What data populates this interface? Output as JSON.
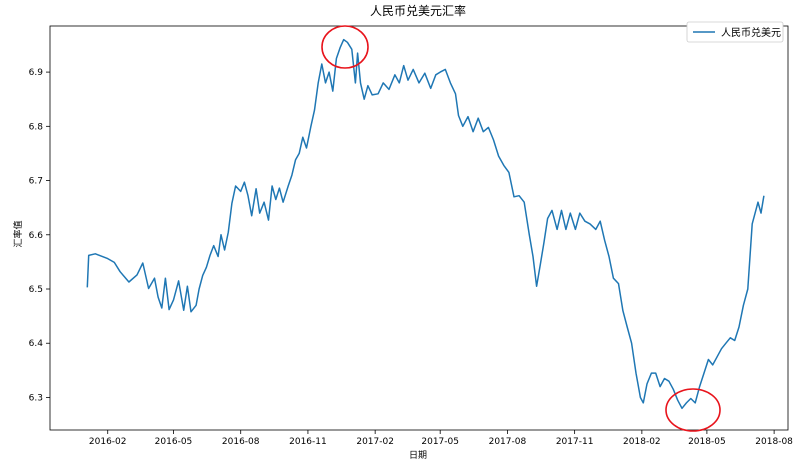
{
  "chart_data": {
    "type": "line",
    "title": "人民币兑美元汇率",
    "xlabel": "日期",
    "ylabel": "汇率值",
    "xlim": [
      "2015-11-14",
      "2018-08-20"
    ],
    "ylim": [
      6.24,
      6.985
    ],
    "x_ticks": [
      "2016-02",
      "2016-05",
      "2016-08",
      "2016-11",
      "2017-02",
      "2017-05",
      "2017-08",
      "2017-11",
      "2018-02",
      "2018-05",
      "2018-08"
    ],
    "y_ticks": [
      6.3,
      6.4,
      6.5,
      6.6,
      6.7,
      6.8,
      6.9
    ],
    "grid": false,
    "legend": "top-right",
    "colors": {
      "line": "#1f77b4",
      "annotation": "#e8141c"
    },
    "series": [
      {
        "name": "人民币兑美元",
        "points": [
          [
            "2016-01-04",
            6.503
          ],
          [
            "2016-01-06",
            6.562
          ],
          [
            "2016-01-15",
            6.565
          ],
          [
            "2016-02-01",
            6.556
          ],
          [
            "2016-02-10",
            6.549
          ],
          [
            "2016-02-18",
            6.532
          ],
          [
            "2016-03-01",
            6.513
          ],
          [
            "2016-03-12",
            6.526
          ],
          [
            "2016-03-20",
            6.548
          ],
          [
            "2016-03-28",
            6.501
          ],
          [
            "2016-04-05",
            6.52
          ],
          [
            "2016-04-10",
            6.485
          ],
          [
            "2016-04-15",
            6.465
          ],
          [
            "2016-04-20",
            6.52
          ],
          [
            "2016-04-25",
            6.462
          ],
          [
            "2016-05-01",
            6.48
          ],
          [
            "2016-05-08",
            6.515
          ],
          [
            "2016-05-15",
            6.461
          ],
          [
            "2016-05-20",
            6.505
          ],
          [
            "2016-05-25",
            6.458
          ],
          [
            "2016-06-01",
            6.47
          ],
          [
            "2016-06-05",
            6.5
          ],
          [
            "2016-06-10",
            6.525
          ],
          [
            "2016-06-15",
            6.54
          ],
          [
            "2016-06-20",
            6.562
          ],
          [
            "2016-06-25",
            6.58
          ],
          [
            "2016-07-01",
            6.56
          ],
          [
            "2016-07-05",
            6.6
          ],
          [
            "2016-07-10",
            6.572
          ],
          [
            "2016-07-15",
            6.605
          ],
          [
            "2016-07-20",
            6.658
          ],
          [
            "2016-07-25",
            6.69
          ],
          [
            "2016-08-01",
            6.68
          ],
          [
            "2016-08-06",
            6.697
          ],
          [
            "2016-08-11",
            6.672
          ],
          [
            "2016-08-16",
            6.635
          ],
          [
            "2016-08-22",
            6.685
          ],
          [
            "2016-08-27",
            6.64
          ],
          [
            "2016-09-02",
            6.66
          ],
          [
            "2016-09-08",
            6.627
          ],
          [
            "2016-09-13",
            6.69
          ],
          [
            "2016-09-18",
            6.665
          ],
          [
            "2016-09-23",
            6.686
          ],
          [
            "2016-09-28",
            6.66
          ],
          [
            "2016-10-05",
            6.69
          ],
          [
            "2016-10-10",
            6.71
          ],
          [
            "2016-10-15",
            6.738
          ],
          [
            "2016-10-20",
            6.75
          ],
          [
            "2016-10-25",
            6.78
          ],
          [
            "2016-10-30",
            6.76
          ],
          [
            "2016-11-05",
            6.8
          ],
          [
            "2016-11-10",
            6.83
          ],
          [
            "2016-11-15",
            6.88
          ],
          [
            "2016-11-20",
            6.915
          ],
          [
            "2016-11-25",
            6.88
          ],
          [
            "2016-11-30",
            6.9
          ],
          [
            "2016-12-05",
            6.865
          ],
          [
            "2016-12-10",
            6.925
          ],
          [
            "2016-12-15",
            6.945
          ],
          [
            "2016-12-20",
            6.96
          ],
          [
            "2016-12-25",
            6.955
          ],
          [
            "2016-12-31",
            6.942
          ],
          [
            "2017-01-05",
            6.88
          ],
          [
            "2017-01-08",
            6.935
          ],
          [
            "2017-01-12",
            6.88
          ],
          [
            "2017-01-17",
            6.85
          ],
          [
            "2017-01-22",
            6.875
          ],
          [
            "2017-01-28",
            6.858
          ],
          [
            "2017-02-05",
            6.86
          ],
          [
            "2017-02-12",
            6.88
          ],
          [
            "2017-02-20",
            6.868
          ],
          [
            "2017-02-28",
            6.895
          ],
          [
            "2017-03-06",
            6.88
          ],
          [
            "2017-03-12",
            6.912
          ],
          [
            "2017-03-18",
            6.885
          ],
          [
            "2017-03-25",
            6.905
          ],
          [
            "2017-04-02",
            6.88
          ],
          [
            "2017-04-10",
            6.898
          ],
          [
            "2017-04-18",
            6.87
          ],
          [
            "2017-04-25",
            6.895
          ],
          [
            "2017-05-01",
            6.9
          ],
          [
            "2017-05-08",
            6.905
          ],
          [
            "2017-05-15",
            6.88
          ],
          [
            "2017-05-22",
            6.86
          ],
          [
            "2017-05-26",
            6.82
          ],
          [
            "2017-06-01",
            6.8
          ],
          [
            "2017-06-08",
            6.818
          ],
          [
            "2017-06-15",
            6.79
          ],
          [
            "2017-06-22",
            6.815
          ],
          [
            "2017-06-29",
            6.79
          ],
          [
            "2017-07-06",
            6.798
          ],
          [
            "2017-07-13",
            6.775
          ],
          [
            "2017-07-20",
            6.745
          ],
          [
            "2017-07-27",
            6.728
          ],
          [
            "2017-08-03",
            6.715
          ],
          [
            "2017-08-10",
            6.67
          ],
          [
            "2017-08-17",
            6.672
          ],
          [
            "2017-08-24",
            6.66
          ],
          [
            "2017-08-31",
            6.6
          ],
          [
            "2017-09-05",
            6.56
          ],
          [
            "2017-09-10",
            6.505
          ],
          [
            "2017-09-15",
            6.545
          ],
          [
            "2017-09-20",
            6.585
          ],
          [
            "2017-09-25",
            6.63
          ],
          [
            "2017-10-01",
            6.645
          ],
          [
            "2017-10-08",
            6.61
          ],
          [
            "2017-10-14",
            6.645
          ],
          [
            "2017-10-20",
            6.61
          ],
          [
            "2017-10-26",
            6.64
          ],
          [
            "2017-11-02",
            6.61
          ],
          [
            "2017-11-08",
            6.64
          ],
          [
            "2017-11-15",
            6.625
          ],
          [
            "2017-11-22",
            6.62
          ],
          [
            "2017-11-30",
            6.61
          ],
          [
            "2017-12-06",
            6.625
          ],
          [
            "2017-12-12",
            6.59
          ],
          [
            "2017-12-18",
            6.56
          ],
          [
            "2017-12-24",
            6.52
          ],
          [
            "2017-12-31",
            6.51
          ],
          [
            "2018-01-06",
            6.46
          ],
          [
            "2018-01-12",
            6.43
          ],
          [
            "2018-01-18",
            6.4
          ],
          [
            "2018-01-24",
            6.345
          ],
          [
            "2018-01-30",
            6.3
          ],
          [
            "2018-02-03",
            6.29
          ],
          [
            "2018-02-08",
            6.325
          ],
          [
            "2018-02-14",
            6.345
          ],
          [
            "2018-02-20",
            6.345
          ],
          [
            "2018-02-26",
            6.32
          ],
          [
            "2018-03-04",
            6.335
          ],
          [
            "2018-03-10",
            6.33
          ],
          [
            "2018-03-16",
            6.315
          ],
          [
            "2018-03-22",
            6.295
          ],
          [
            "2018-03-28",
            6.28
          ],
          [
            "2018-04-03",
            6.29
          ],
          [
            "2018-04-09",
            6.298
          ],
          [
            "2018-04-15",
            6.29
          ],
          [
            "2018-04-21",
            6.32
          ],
          [
            "2018-04-27",
            6.345
          ],
          [
            "2018-05-03",
            6.37
          ],
          [
            "2018-05-09",
            6.36
          ],
          [
            "2018-05-15",
            6.375
          ],
          [
            "2018-05-21",
            6.39
          ],
          [
            "2018-05-27",
            6.4
          ],
          [
            "2018-06-02",
            6.41
          ],
          [
            "2018-06-08",
            6.405
          ],
          [
            "2018-06-14",
            6.43
          ],
          [
            "2018-06-20",
            6.47
          ],
          [
            "2018-06-26",
            6.5
          ],
          [
            "2018-07-02",
            6.62
          ],
          [
            "2018-07-06",
            6.64
          ],
          [
            "2018-07-10",
            6.66
          ],
          [
            "2018-07-14",
            6.64
          ],
          [
            "2018-07-18",
            6.672
          ]
        ]
      }
    ]
  }
}
